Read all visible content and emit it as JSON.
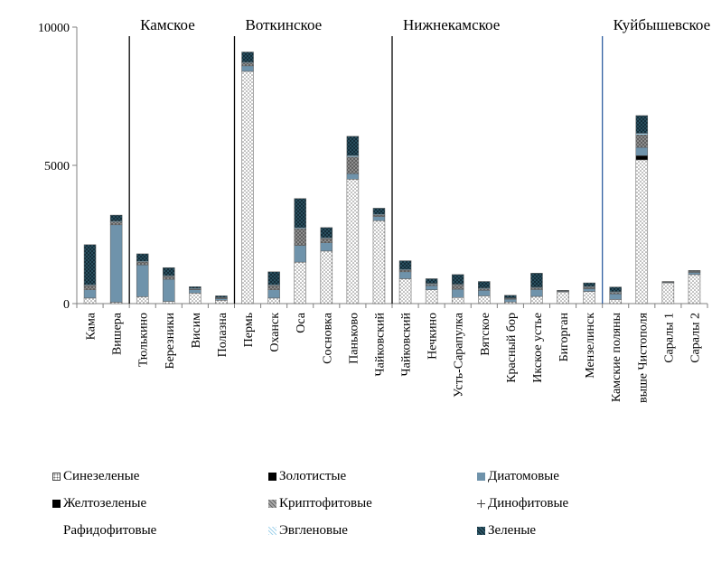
{
  "chart_data": {
    "type": "bar",
    "stacked": true,
    "title": "",
    "xlabel": "",
    "ylabel": "",
    "ylim": [
      0,
      10000
    ],
    "yticks": [
      0,
      5000,
      10000
    ],
    "grid": false,
    "legend_position": "bottom",
    "categories": [
      "Кама",
      "Вишера",
      "Тюлькино",
      "Березники",
      "Висим",
      "Полазна",
      "Пермь",
      "Оханск",
      "Оса",
      "Сосновка",
      "Паньково",
      "Чайковский",
      "Чайковский",
      "Нечкино",
      "Усть-Сарапулка",
      "Вятское",
      "Красный бор",
      "Икское устье",
      "Бигорган",
      "Мензелинск",
      "Камские поляны",
      "выше Чистополя",
      "Саралы 1",
      "Саралы 2"
    ],
    "reservoirs": [
      {
        "name": "Камское",
        "after_category_index": 1
      },
      {
        "name": "Воткинское",
        "after_category_index": 5
      },
      {
        "name": "Нижнекамское",
        "after_category_index": 11
      },
      {
        "name": "Куйбышевское",
        "after_category_index": 19
      }
    ],
    "series": [
      {
        "name": "Синезеленые",
        "color": "#ffffff",
        "pattern": "dots",
        "values": [
          200,
          50,
          250,
          80,
          380,
          120,
          8400,
          200,
          1500,
          1900,
          4500,
          3000,
          900,
          500,
          220,
          280,
          60,
          260,
          420,
          440,
          150,
          5200,
          750,
          1050
        ]
      },
      {
        "name": "Золотистые",
        "color": "#000000",
        "pattern": "solid",
        "values": [
          0,
          0,
          0,
          0,
          0,
          0,
          0,
          0,
          0,
          0,
          0,
          0,
          0,
          0,
          0,
          0,
          0,
          0,
          0,
          0,
          0,
          150,
          0,
          0
        ]
      },
      {
        "name": "Диатомовые",
        "color": "#6f93ab",
        "pattern": "solid",
        "values": [
          300,
          2800,
          1150,
          800,
          120,
          60,
          200,
          300,
          600,
          300,
          200,
          150,
          250,
          150,
          300,
          200,
          100,
          250,
          20,
          100,
          200,
          300,
          20,
          80
        ]
      },
      {
        "name": "Желтозеленые",
        "color": "#000000",
        "pattern": "solid",
        "values": [
          0,
          0,
          0,
          0,
          0,
          0,
          0,
          0,
          0,
          0,
          0,
          0,
          0,
          0,
          0,
          0,
          0,
          0,
          0,
          0,
          0,
          0,
          0,
          0
        ]
      },
      {
        "name": "Криптофитовые",
        "color": "#8d8d8d",
        "pattern": "cross",
        "values": [
          150,
          100,
          100,
          100,
          20,
          20,
          100,
          150,
          600,
          150,
          600,
          50,
          50,
          50,
          150,
          50,
          20,
          50,
          0,
          50,
          50,
          450,
          0,
          30
        ]
      },
      {
        "name": "Динофитовые",
        "color": "#b9b9b9",
        "pattern": "plus",
        "values": [
          0,
          0,
          0,
          0,
          0,
          0,
          0,
          0,
          0,
          0,
          0,
          0,
          0,
          0,
          0,
          0,
          0,
          0,
          0,
          0,
          0,
          0,
          0,
          0
        ]
      },
      {
        "name": "Рафидофитовые",
        "color": "#ffffff",
        "pattern": "none",
        "values": [
          0,
          0,
          0,
          0,
          0,
          0,
          0,
          0,
          0,
          0,
          0,
          0,
          0,
          0,
          0,
          0,
          0,
          0,
          0,
          0,
          0,
          0,
          0,
          0
        ]
      },
      {
        "name": "Эвгленовые",
        "color": "#a3d3ec",
        "pattern": "solid",
        "values": [
          30,
          30,
          30,
          30,
          30,
          20,
          30,
          30,
          40,
          30,
          50,
          30,
          30,
          30,
          30,
          30,
          20,
          30,
          20,
          30,
          30,
          60,
          20,
          20
        ]
      },
      {
        "name": "Зеленые",
        "color": "#2f5a6b",
        "pattern": "dark-cross",
        "values": [
          1450,
          220,
          270,
          290,
          60,
          60,
          370,
          470,
          1060,
          370,
          700,
          220,
          320,
          170,
          350,
          240,
          100,
          510,
          20,
          130,
          170,
          640,
          10,
          20
        ]
      }
    ]
  }
}
